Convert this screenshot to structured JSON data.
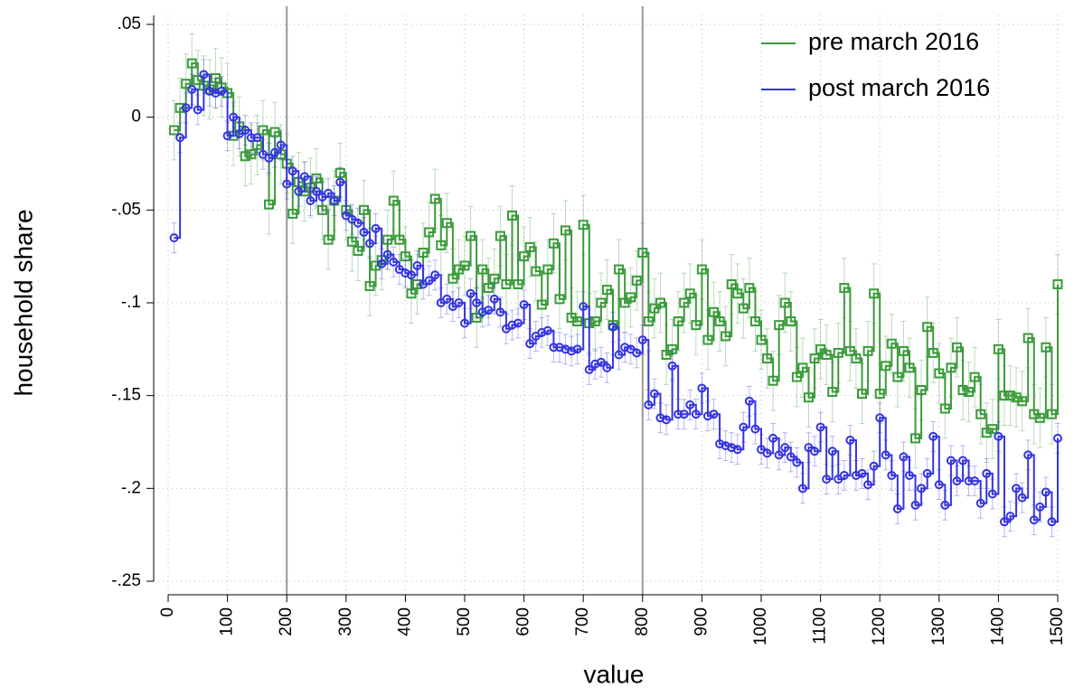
{
  "chart_data": {
    "type": "scatter",
    "step_lines": true,
    "error_bars": true,
    "grid": true,
    "legend": "top-right",
    "x_label": "value",
    "y_label": "household share",
    "xlim": [
      0,
      1500
    ],
    "ylim": [
      -0.25,
      0.05
    ],
    "xticks": [
      0,
      100,
      200,
      300,
      400,
      500,
      600,
      700,
      800,
      900,
      1000,
      1100,
      1200,
      1300,
      1400,
      1500
    ],
    "yticks": [
      {
        "value": 0.05,
        "label": ".05"
      },
      0,
      {
        "value": -0.05,
        "label": "-.05"
      },
      {
        "value": -0.1,
        "label": "-.1"
      },
      {
        "value": -0.15,
        "label": "-.15"
      },
      {
        "value": -0.2,
        "label": "-.2"
      },
      {
        "value": -0.25,
        "label": "-.25"
      }
    ],
    "xlines": [
      200,
      800
    ],
    "x": [
      10,
      20,
      30,
      40,
      50,
      60,
      70,
      80,
      90,
      100,
      110,
      120,
      130,
      140,
      150,
      160,
      170,
      180,
      190,
      200,
      210,
      220,
      230,
      240,
      250,
      260,
      270,
      280,
      290,
      300,
      310,
      320,
      330,
      340,
      350,
      360,
      370,
      380,
      390,
      400,
      410,
      420,
      430,
      440,
      450,
      460,
      470,
      480,
      490,
      500,
      510,
      520,
      530,
      540,
      550,
      560,
      570,
      580,
      590,
      600,
      610,
      620,
      630,
      640,
      650,
      660,
      670,
      680,
      690,
      700,
      710,
      720,
      730,
      740,
      750,
      760,
      770,
      780,
      790,
      800,
      810,
      820,
      830,
      840,
      850,
      860,
      870,
      880,
      890,
      900,
      910,
      920,
      930,
      940,
      950,
      960,
      970,
      980,
      990,
      1000,
      1010,
      1020,
      1030,
      1040,
      1050,
      1060,
      1070,
      1080,
      1090,
      1100,
      1110,
      1120,
      1130,
      1140,
      1150,
      1160,
      1170,
      1180,
      1190,
      1200,
      1210,
      1220,
      1230,
      1240,
      1250,
      1260,
      1270,
      1280,
      1290,
      1300,
      1310,
      1320,
      1330,
      1340,
      1350,
      1360,
      1370,
      1380,
      1390,
      1400,
      1410,
      1420,
      1430,
      1440,
      1450,
      1460,
      1470,
      1480,
      1490,
      1500
    ],
    "series": [
      {
        "name": "pre march 2016",
        "color": "#3a9a3a",
        "marker": "square",
        "error": 0.016,
        "values": [
          -0.007,
          0.005,
          0.018,
          0.029,
          0.02,
          0.017,
          0.015,
          0.021,
          0.016,
          0.013,
          -0.01,
          -0.005,
          -0.021,
          -0.02,
          -0.015,
          -0.007,
          -0.047,
          -0.008,
          -0.02,
          -0.025,
          -0.052,
          -0.035,
          -0.04,
          -0.038,
          -0.033,
          -0.05,
          -0.066,
          -0.045,
          -0.03,
          -0.05,
          -0.067,
          -0.072,
          -0.05,
          -0.091,
          -0.08,
          -0.077,
          -0.066,
          -0.045,
          -0.066,
          -0.075,
          -0.095,
          -0.09,
          -0.073,
          -0.062,
          -0.044,
          -0.069,
          -0.057,
          -0.087,
          -0.082,
          -0.08,
          -0.064,
          -0.108,
          -0.082,
          -0.092,
          -0.087,
          -0.064,
          -0.09,
          -0.053,
          -0.09,
          -0.075,
          -0.07,
          -0.083,
          -0.101,
          -0.082,
          -0.068,
          -0.098,
          -0.061,
          -0.108,
          -0.11,
          -0.058,
          -0.111,
          -0.11,
          -0.1,
          -0.093,
          -0.112,
          -0.082,
          -0.1,
          -0.097,
          -0.088,
          -0.073,
          -0.11,
          -0.103,
          -0.1,
          -0.128,
          -0.125,
          -0.11,
          -0.1,
          -0.095,
          -0.112,
          -0.082,
          -0.12,
          -0.105,
          -0.11,
          -0.118,
          -0.09,
          -0.095,
          -0.103,
          -0.092,
          -0.11,
          -0.12,
          -0.13,
          -0.142,
          -0.112,
          -0.1,
          -0.11,
          -0.14,
          -0.135,
          -0.151,
          -0.13,
          -0.125,
          -0.128,
          -0.148,
          -0.127,
          -0.092,
          -0.126,
          -0.13,
          -0.149,
          -0.126,
          -0.095,
          -0.149,
          -0.134,
          -0.122,
          -0.14,
          -0.126,
          -0.135,
          -0.173,
          -0.147,
          -0.113,
          -0.127,
          -0.138,
          -0.157,
          -0.135,
          -0.124,
          -0.147,
          -0.148,
          -0.14,
          -0.16,
          -0.17,
          -0.168,
          -0.125,
          -0.15,
          -0.15,
          -0.151,
          -0.153,
          -0.119,
          -0.16,
          -0.162,
          -0.124,
          -0.16,
          -0.09
        ]
      },
      {
        "name": "post march 2016",
        "color": "#3535e0",
        "marker": "circle",
        "error": 0.008,
        "values": [
          -0.065,
          -0.011,
          0.005,
          0.015,
          0.004,
          0.023,
          0.014,
          0.013,
          0.014,
          -0.01,
          0.0,
          -0.009,
          -0.007,
          -0.011,
          -0.011,
          -0.02,
          -0.022,
          -0.019,
          -0.015,
          -0.036,
          -0.029,
          -0.04,
          -0.032,
          -0.045,
          -0.04,
          -0.043,
          -0.041,
          -0.045,
          -0.035,
          -0.053,
          -0.055,
          -0.057,
          -0.062,
          -0.068,
          -0.06,
          -0.079,
          -0.074,
          -0.078,
          -0.082,
          -0.084,
          -0.085,
          -0.08,
          -0.09,
          -0.088,
          -0.085,
          -0.1,
          -0.098,
          -0.102,
          -0.1,
          -0.111,
          -0.095,
          -0.1,
          -0.105,
          -0.104,
          -0.098,
          -0.105,
          -0.114,
          -0.112,
          -0.111,
          -0.101,
          -0.122,
          -0.118,
          -0.116,
          -0.115,
          -0.124,
          -0.124,
          -0.125,
          -0.126,
          -0.125,
          -0.102,
          -0.136,
          -0.133,
          -0.132,
          -0.135,
          -0.113,
          -0.128,
          -0.124,
          -0.125,
          -0.127,
          -0.12,
          -0.155,
          -0.149,
          -0.162,
          -0.163,
          -0.134,
          -0.16,
          -0.16,
          -0.155,
          -0.16,
          -0.146,
          -0.161,
          -0.16,
          -0.176,
          -0.177,
          -0.178,
          -0.179,
          -0.167,
          -0.153,
          -0.168,
          -0.179,
          -0.181,
          -0.173,
          -0.182,
          -0.178,
          -0.183,
          -0.186,
          -0.2,
          -0.178,
          -0.18,
          -0.167,
          -0.195,
          -0.18,
          -0.195,
          -0.193,
          -0.174,
          -0.193,
          -0.192,
          -0.198,
          -0.188,
          -0.162,
          -0.182,
          -0.193,
          -0.211,
          -0.183,
          -0.193,
          -0.209,
          -0.2,
          -0.192,
          -0.172,
          -0.198,
          -0.209,
          -0.185,
          -0.196,
          -0.185,
          -0.196,
          -0.196,
          -0.208,
          -0.192,
          -0.203,
          -0.172,
          -0.218,
          -0.215,
          -0.2,
          -0.205,
          -0.182,
          -0.217,
          -0.21,
          -0.202,
          -0.218,
          -0.173
        ]
      }
    ]
  }
}
